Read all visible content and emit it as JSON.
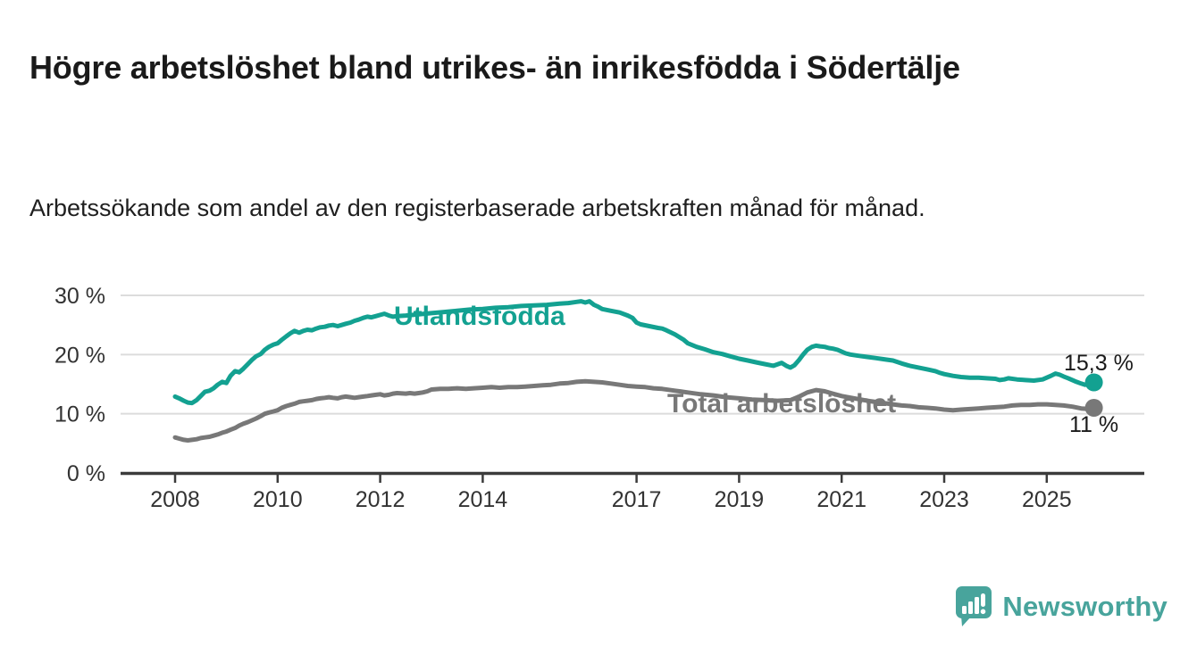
{
  "chart_data": {
    "type": "line",
    "title": "Högre arbetslöshet bland utrikes- än inrikesfödda i Södertälje",
    "subtitle": "Arbetssökande som andel av den registerbaserade arbetskraften månad för månad.",
    "unit": "%",
    "x_domain": [
      2007.0,
      2026.9
    ],
    "ylim": [
      0,
      31
    ],
    "grid": true,
    "legend_position": "inline-labels-and-end-values",
    "x_ticks": [
      2008,
      2010,
      2012,
      2014,
      2017,
      2019,
      2021,
      2023,
      2025
    ],
    "y_ticks": [
      {
        "value": 0,
        "label": "0 %"
      },
      {
        "value": 10,
        "label": "10 %"
      },
      {
        "value": 20,
        "label": "20 %"
      },
      {
        "value": 30,
        "label": "30 %"
      }
    ],
    "series": [
      {
        "name": "Utlandsfödda",
        "color": "#13a191",
        "end_label": "15,3 %",
        "end_value": 15.3,
        "points": [
          [
            2008.0,
            12.9
          ],
          [
            2008.08,
            12.6
          ],
          [
            2008.17,
            12.2
          ],
          [
            2008.25,
            11.9
          ],
          [
            2008.33,
            11.8
          ],
          [
            2008.42,
            12.3
          ],
          [
            2008.5,
            13.0
          ],
          [
            2008.58,
            13.7
          ],
          [
            2008.67,
            13.9
          ],
          [
            2008.75,
            14.3
          ],
          [
            2008.83,
            14.9
          ],
          [
            2008.92,
            15.4
          ],
          [
            2009.0,
            15.2
          ],
          [
            2009.08,
            16.4
          ],
          [
            2009.17,
            17.2
          ],
          [
            2009.25,
            17.0
          ],
          [
            2009.33,
            17.6
          ],
          [
            2009.42,
            18.4
          ],
          [
            2009.5,
            19.1
          ],
          [
            2009.58,
            19.7
          ],
          [
            2009.67,
            20.1
          ],
          [
            2009.75,
            20.8
          ],
          [
            2009.83,
            21.3
          ],
          [
            2009.92,
            21.7
          ],
          [
            2010.0,
            21.9
          ],
          [
            2010.08,
            22.5
          ],
          [
            2010.17,
            23.1
          ],
          [
            2010.25,
            23.6
          ],
          [
            2010.33,
            24.0
          ],
          [
            2010.42,
            23.7
          ],
          [
            2010.5,
            24.0
          ],
          [
            2010.58,
            24.2
          ],
          [
            2010.67,
            24.1
          ],
          [
            2010.75,
            24.4
          ],
          [
            2010.83,
            24.6
          ],
          [
            2010.92,
            24.7
          ],
          [
            2011.0,
            24.9
          ],
          [
            2011.08,
            25.0
          ],
          [
            2011.17,
            24.8
          ],
          [
            2011.25,
            25.0
          ],
          [
            2011.33,
            25.2
          ],
          [
            2011.42,
            25.4
          ],
          [
            2011.5,
            25.7
          ],
          [
            2011.58,
            25.9
          ],
          [
            2011.67,
            26.2
          ],
          [
            2011.75,
            26.4
          ],
          [
            2011.83,
            26.3
          ],
          [
            2011.92,
            26.5
          ],
          [
            2012.0,
            26.7
          ],
          [
            2012.08,
            26.9
          ],
          [
            2012.17,
            26.6
          ],
          [
            2012.25,
            26.4
          ],
          [
            2012.33,
            26.5
          ],
          [
            2012.5,
            26.6
          ],
          [
            2012.75,
            26.8
          ],
          [
            2013.0,
            27.0
          ],
          [
            2013.25,
            27.2
          ],
          [
            2013.5,
            27.4
          ],
          [
            2013.75,
            27.6
          ],
          [
            2014.0,
            27.7
          ],
          [
            2014.25,
            27.9
          ],
          [
            2014.5,
            28.0
          ],
          [
            2014.75,
            28.2
          ],
          [
            2015.0,
            28.3
          ],
          [
            2015.25,
            28.4
          ],
          [
            2015.5,
            28.6
          ],
          [
            2015.67,
            28.7
          ],
          [
            2015.83,
            28.9
          ],
          [
            2015.92,
            29.0
          ],
          [
            2016.0,
            28.8
          ],
          [
            2016.08,
            29.0
          ],
          [
            2016.17,
            28.4
          ],
          [
            2016.25,
            28.1
          ],
          [
            2016.33,
            27.7
          ],
          [
            2016.5,
            27.4
          ],
          [
            2016.67,
            27.1
          ],
          [
            2016.83,
            26.6
          ],
          [
            2016.92,
            26.2
          ],
          [
            2017.0,
            25.4
          ],
          [
            2017.08,
            25.1
          ],
          [
            2017.25,
            24.8
          ],
          [
            2017.42,
            24.5
          ],
          [
            2017.5,
            24.4
          ],
          [
            2017.58,
            24.1
          ],
          [
            2017.75,
            23.4
          ],
          [
            2017.92,
            22.5
          ],
          [
            2018.0,
            21.9
          ],
          [
            2018.17,
            21.3
          ],
          [
            2018.33,
            20.9
          ],
          [
            2018.5,
            20.4
          ],
          [
            2018.67,
            20.1
          ],
          [
            2018.83,
            19.7
          ],
          [
            2019.0,
            19.3
          ],
          [
            2019.17,
            19.0
          ],
          [
            2019.33,
            18.7
          ],
          [
            2019.5,
            18.4
          ],
          [
            2019.67,
            18.1
          ],
          [
            2019.83,
            18.6
          ],
          [
            2019.92,
            18.1
          ],
          [
            2020.0,
            17.8
          ],
          [
            2020.08,
            18.2
          ],
          [
            2020.17,
            19.1
          ],
          [
            2020.25,
            20.0
          ],
          [
            2020.33,
            20.8
          ],
          [
            2020.42,
            21.3
          ],
          [
            2020.5,
            21.5
          ],
          [
            2020.58,
            21.4
          ],
          [
            2020.67,
            21.3
          ],
          [
            2020.75,
            21.1
          ],
          [
            2020.83,
            21.0
          ],
          [
            2020.92,
            20.8
          ],
          [
            2021.0,
            20.5
          ],
          [
            2021.08,
            20.2
          ],
          [
            2021.17,
            20.0
          ],
          [
            2021.33,
            19.8
          ],
          [
            2021.5,
            19.6
          ],
          [
            2021.67,
            19.4
          ],
          [
            2021.83,
            19.2
          ],
          [
            2022.0,
            19.0
          ],
          [
            2022.17,
            18.5
          ],
          [
            2022.33,
            18.1
          ],
          [
            2022.5,
            17.8
          ],
          [
            2022.67,
            17.5
          ],
          [
            2022.83,
            17.2
          ],
          [
            2022.92,
            16.9
          ],
          [
            2023.0,
            16.7
          ],
          [
            2023.17,
            16.4
          ],
          [
            2023.33,
            16.2
          ],
          [
            2023.5,
            16.1
          ],
          [
            2023.67,
            16.1
          ],
          [
            2023.83,
            16.0
          ],
          [
            2024.0,
            15.9
          ],
          [
            2024.08,
            15.7
          ],
          [
            2024.17,
            15.8
          ],
          [
            2024.25,
            16.0
          ],
          [
            2024.42,
            15.8
          ],
          [
            2024.58,
            15.7
          ],
          [
            2024.75,
            15.6
          ],
          [
            2024.92,
            15.8
          ],
          [
            2025.0,
            16.1
          ],
          [
            2025.08,
            16.4
          ],
          [
            2025.17,
            16.8
          ],
          [
            2025.25,
            16.6
          ],
          [
            2025.33,
            16.3
          ],
          [
            2025.42,
            16.0
          ],
          [
            2025.5,
            15.7
          ],
          [
            2025.58,
            15.4
          ],
          [
            2025.67,
            15.1
          ],
          [
            2025.75,
            14.9
          ],
          [
            2025.83,
            15.0
          ],
          [
            2025.92,
            15.3
          ]
        ]
      },
      {
        "name": "Total arbetslöshet",
        "color": "#787878",
        "end_label": "11 %",
        "end_value": 11.0,
        "points": [
          [
            2008.0,
            6.0
          ],
          [
            2008.08,
            5.8
          ],
          [
            2008.17,
            5.6
          ],
          [
            2008.25,
            5.5
          ],
          [
            2008.33,
            5.6
          ],
          [
            2008.42,
            5.7
          ],
          [
            2008.5,
            5.9
          ],
          [
            2008.58,
            6.0
          ],
          [
            2008.67,
            6.1
          ],
          [
            2008.75,
            6.3
          ],
          [
            2008.83,
            6.5
          ],
          [
            2008.92,
            6.8
          ],
          [
            2009.0,
            7.0
          ],
          [
            2009.08,
            7.3
          ],
          [
            2009.17,
            7.6
          ],
          [
            2009.25,
            8.0
          ],
          [
            2009.33,
            8.3
          ],
          [
            2009.42,
            8.6
          ],
          [
            2009.5,
            8.9
          ],
          [
            2009.58,
            9.2
          ],
          [
            2009.67,
            9.6
          ],
          [
            2009.75,
            10.0
          ],
          [
            2009.83,
            10.2
          ],
          [
            2009.92,
            10.4
          ],
          [
            2010.0,
            10.6
          ],
          [
            2010.08,
            11.0
          ],
          [
            2010.17,
            11.3
          ],
          [
            2010.25,
            11.5
          ],
          [
            2010.33,
            11.7
          ],
          [
            2010.42,
            12.0
          ],
          [
            2010.5,
            12.1
          ],
          [
            2010.58,
            12.2
          ],
          [
            2010.67,
            12.3
          ],
          [
            2010.75,
            12.5
          ],
          [
            2010.83,
            12.6
          ],
          [
            2010.92,
            12.7
          ],
          [
            2011.0,
            12.8
          ],
          [
            2011.08,
            12.7
          ],
          [
            2011.17,
            12.6
          ],
          [
            2011.25,
            12.8
          ],
          [
            2011.33,
            12.9
          ],
          [
            2011.42,
            12.8
          ],
          [
            2011.5,
            12.7
          ],
          [
            2011.58,
            12.8
          ],
          [
            2011.67,
            12.9
          ],
          [
            2011.75,
            13.0
          ],
          [
            2011.83,
            13.1
          ],
          [
            2011.92,
            13.2
          ],
          [
            2012.0,
            13.3
          ],
          [
            2012.08,
            13.1
          ],
          [
            2012.17,
            13.2
          ],
          [
            2012.25,
            13.4
          ],
          [
            2012.33,
            13.5
          ],
          [
            2012.5,
            13.4
          ],
          [
            2012.58,
            13.5
          ],
          [
            2012.67,
            13.4
          ],
          [
            2012.75,
            13.5
          ],
          [
            2012.83,
            13.6
          ],
          [
            2012.92,
            13.8
          ],
          [
            2013.0,
            14.1
          ],
          [
            2013.17,
            14.2
          ],
          [
            2013.33,
            14.2
          ],
          [
            2013.5,
            14.3
          ],
          [
            2013.67,
            14.2
          ],
          [
            2013.83,
            14.3
          ],
          [
            2014.0,
            14.4
          ],
          [
            2014.17,
            14.5
          ],
          [
            2014.33,
            14.4
          ],
          [
            2014.5,
            14.5
          ],
          [
            2014.67,
            14.5
          ],
          [
            2014.83,
            14.6
          ],
          [
            2015.0,
            14.7
          ],
          [
            2015.17,
            14.8
          ],
          [
            2015.33,
            14.9
          ],
          [
            2015.5,
            15.1
          ],
          [
            2015.67,
            15.2
          ],
          [
            2015.83,
            15.4
          ],
          [
            2016.0,
            15.5
          ],
          [
            2016.17,
            15.4
          ],
          [
            2016.33,
            15.3
          ],
          [
            2016.5,
            15.1
          ],
          [
            2016.67,
            14.9
          ],
          [
            2016.83,
            14.7
          ],
          [
            2017.0,
            14.6
          ],
          [
            2017.17,
            14.5
          ],
          [
            2017.33,
            14.3
          ],
          [
            2017.5,
            14.2
          ],
          [
            2017.75,
            13.9
          ],
          [
            2018.0,
            13.6
          ],
          [
            2018.25,
            13.3
          ],
          [
            2018.5,
            13.1
          ],
          [
            2018.75,
            12.8
          ],
          [
            2019.0,
            12.6
          ],
          [
            2019.25,
            12.4
          ],
          [
            2019.5,
            12.3
          ],
          [
            2019.75,
            12.2
          ],
          [
            2020.0,
            12.3
          ],
          [
            2020.17,
            12.9
          ],
          [
            2020.33,
            13.6
          ],
          [
            2020.5,
            14.0
          ],
          [
            2020.67,
            13.8
          ],
          [
            2020.83,
            13.4
          ],
          [
            2021.0,
            13.0
          ],
          [
            2021.25,
            12.6
          ],
          [
            2021.5,
            12.2
          ],
          [
            2021.75,
            11.9
          ],
          [
            2022.0,
            11.6
          ],
          [
            2022.17,
            11.4
          ],
          [
            2022.33,
            11.3
          ],
          [
            2022.5,
            11.1
          ],
          [
            2022.67,
            11.0
          ],
          [
            2022.83,
            10.9
          ],
          [
            2023.0,
            10.7
          ],
          [
            2023.17,
            10.6
          ],
          [
            2023.33,
            10.7
          ],
          [
            2023.5,
            10.8
          ],
          [
            2023.67,
            10.9
          ],
          [
            2023.83,
            11.0
          ],
          [
            2024.0,
            11.1
          ],
          [
            2024.17,
            11.2
          ],
          [
            2024.33,
            11.4
          ],
          [
            2024.5,
            11.5
          ],
          [
            2024.67,
            11.5
          ],
          [
            2024.83,
            11.6
          ],
          [
            2025.0,
            11.6
          ],
          [
            2025.17,
            11.5
          ],
          [
            2025.33,
            11.4
          ],
          [
            2025.5,
            11.2
          ],
          [
            2025.67,
            10.9
          ],
          [
            2025.83,
            10.8
          ],
          [
            2025.92,
            11.0
          ]
        ]
      }
    ]
  },
  "colors": {
    "axis": "#3b3b3b",
    "grid": "#dcdcdc",
    "tick_text": "#333333",
    "title_text": "#1a1a1a"
  },
  "footer": {
    "brand": "Newsworthy",
    "brand_color": "#48a49c"
  }
}
